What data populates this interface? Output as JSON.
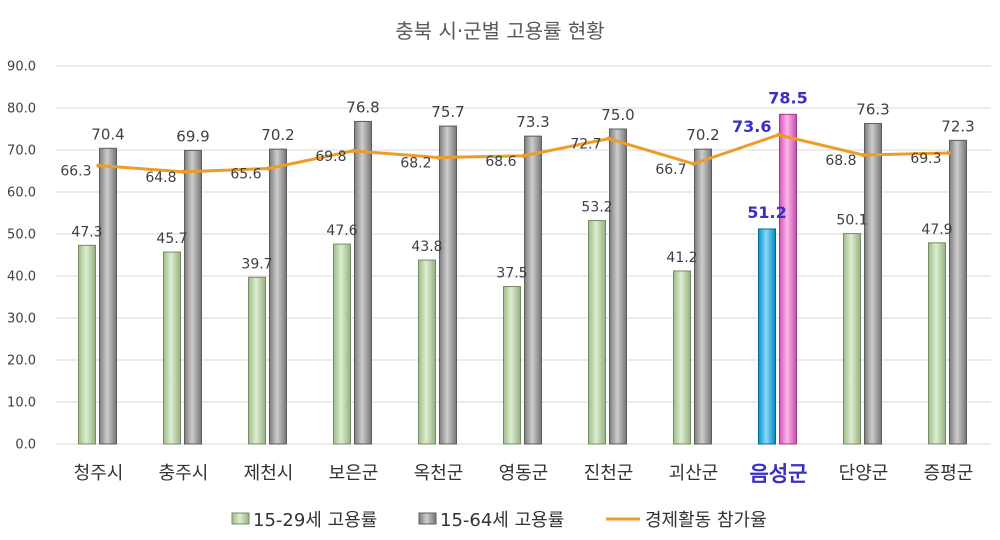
{
  "chart_data": {
    "type": "bar",
    "title": "충북 시·군별 고용률 현황",
    "xlabel": "",
    "ylabel": "",
    "ylim": [
      0,
      90
    ],
    "yticks": [
      0,
      10,
      20,
      30,
      40,
      50,
      60,
      70,
      80,
      90
    ],
    "grid": true,
    "legend": "bottom",
    "categories": [
      "청주시",
      "충주시",
      "제천시",
      "보은군",
      "옥천군",
      "영동군",
      "진천군",
      "괴산군",
      "음성군",
      "단양군",
      "증평군"
    ],
    "series": [
      {
        "name": "15-29세 고용률",
        "type": "bar",
        "values": [
          47.3,
          45.7,
          39.7,
          47.6,
          43.8,
          37.5,
          53.2,
          41.2,
          51.2,
          50.1,
          47.9
        ]
      },
      {
        "name": "15-64세 고용률",
        "type": "bar",
        "values": [
          70.4,
          69.9,
          70.2,
          76.8,
          75.7,
          73.3,
          75.0,
          70.2,
          78.5,
          76.3,
          72.3
        ]
      },
      {
        "name": "경제활동 참가율",
        "type": "line",
        "values": [
          66.3,
          64.8,
          65.6,
          69.8,
          68.2,
          68.6,
          72.7,
          66.7,
          73.6,
          68.8,
          69.3
        ]
      }
    ],
    "highlight_category": "음성군"
  },
  "colors": {
    "series": [
      "#b4d89b",
      "#8f8f8f",
      "#ed9c28"
    ],
    "highlight_bars": [
      "#00a8ec",
      "#f35fd0"
    ],
    "highlight_text": "#3a2fc6"
  }
}
